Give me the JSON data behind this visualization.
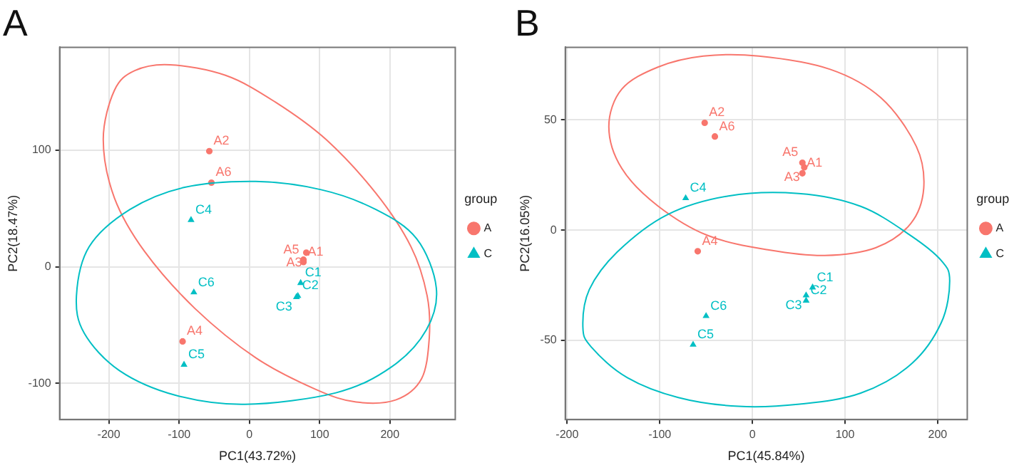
{
  "chart_data": [
    {
      "type": "scatter",
      "title": "A",
      "xlabel": "PC1(43.72%)",
      "ylabel": "PC2(18.47%)",
      "legend": "right",
      "legend_title": "group",
      "grid": true,
      "xlim": [
        -270,
        293
      ],
      "ylim": [
        -131,
        188
      ],
      "xticks": [
        -200,
        -100,
        0,
        100,
        200
      ],
      "yticks": [
        -100,
        0,
        100
      ],
      "series": [
        {
          "name": "A",
          "color": "#f8766d",
          "marker": "circle",
          "x": [
            77,
            -57,
            81,
            -95,
            77,
            -54
          ],
          "values": [
            4,
            99,
            12,
            -64,
            6,
            72
          ],
          "value_labels": [
            "A1",
            "A2",
            "A3",
            "A4",
            "A5",
            "A6"
          ]
        },
        {
          "name": "C",
          "color": "#00bfc4",
          "marker": "triangle",
          "x": [
            73,
            69,
            67,
            -83,
            -93,
            -79
          ],
          "values": [
            -14,
            -25,
            -26,
            40,
            -84,
            -22
          ],
          "value_labels": [
            "C1",
            "C2",
            "C3",
            "C4",
            "C5",
            "C6"
          ]
        }
      ]
    },
    {
      "type": "scatter",
      "title": "B",
      "xlabel": "PC1(45.84%)",
      "ylabel": "PC2(16.05%)",
      "legend": "right",
      "legend_title": "group",
      "grid": true,
      "xlim": [
        -202,
        232
      ],
      "ylim": [
        -86,
        83
      ],
      "xticks": [
        -200,
        -100,
        0,
        100,
        200
      ],
      "yticks": [
        -50,
        0,
        50
      ],
      "series": [
        {
          "name": "A",
          "color": "#f8766d",
          "marker": "circle",
          "x": [
            54,
            -51.5,
            56,
            -59,
            54,
            -40.5
          ],
          "values": [
            25.8,
            48.7,
            28.5,
            -9.6,
            30.6,
            42.5
          ],
          "value_labels": [
            "A1",
            "A2",
            "A3",
            "A4",
            "A5",
            "A6"
          ]
        },
        {
          "name": "C",
          "color": "#00bfc4",
          "marker": "triangle",
          "x": [
            65,
            58,
            58,
            -72,
            -64,
            -50
          ],
          "values": [
            -26,
            -32,
            -29.6,
            14.5,
            -52,
            -39
          ],
          "value_labels": [
            "C1",
            "C2",
            "C3",
            "C4",
            "C5",
            "C6"
          ]
        }
      ]
    }
  ]
}
